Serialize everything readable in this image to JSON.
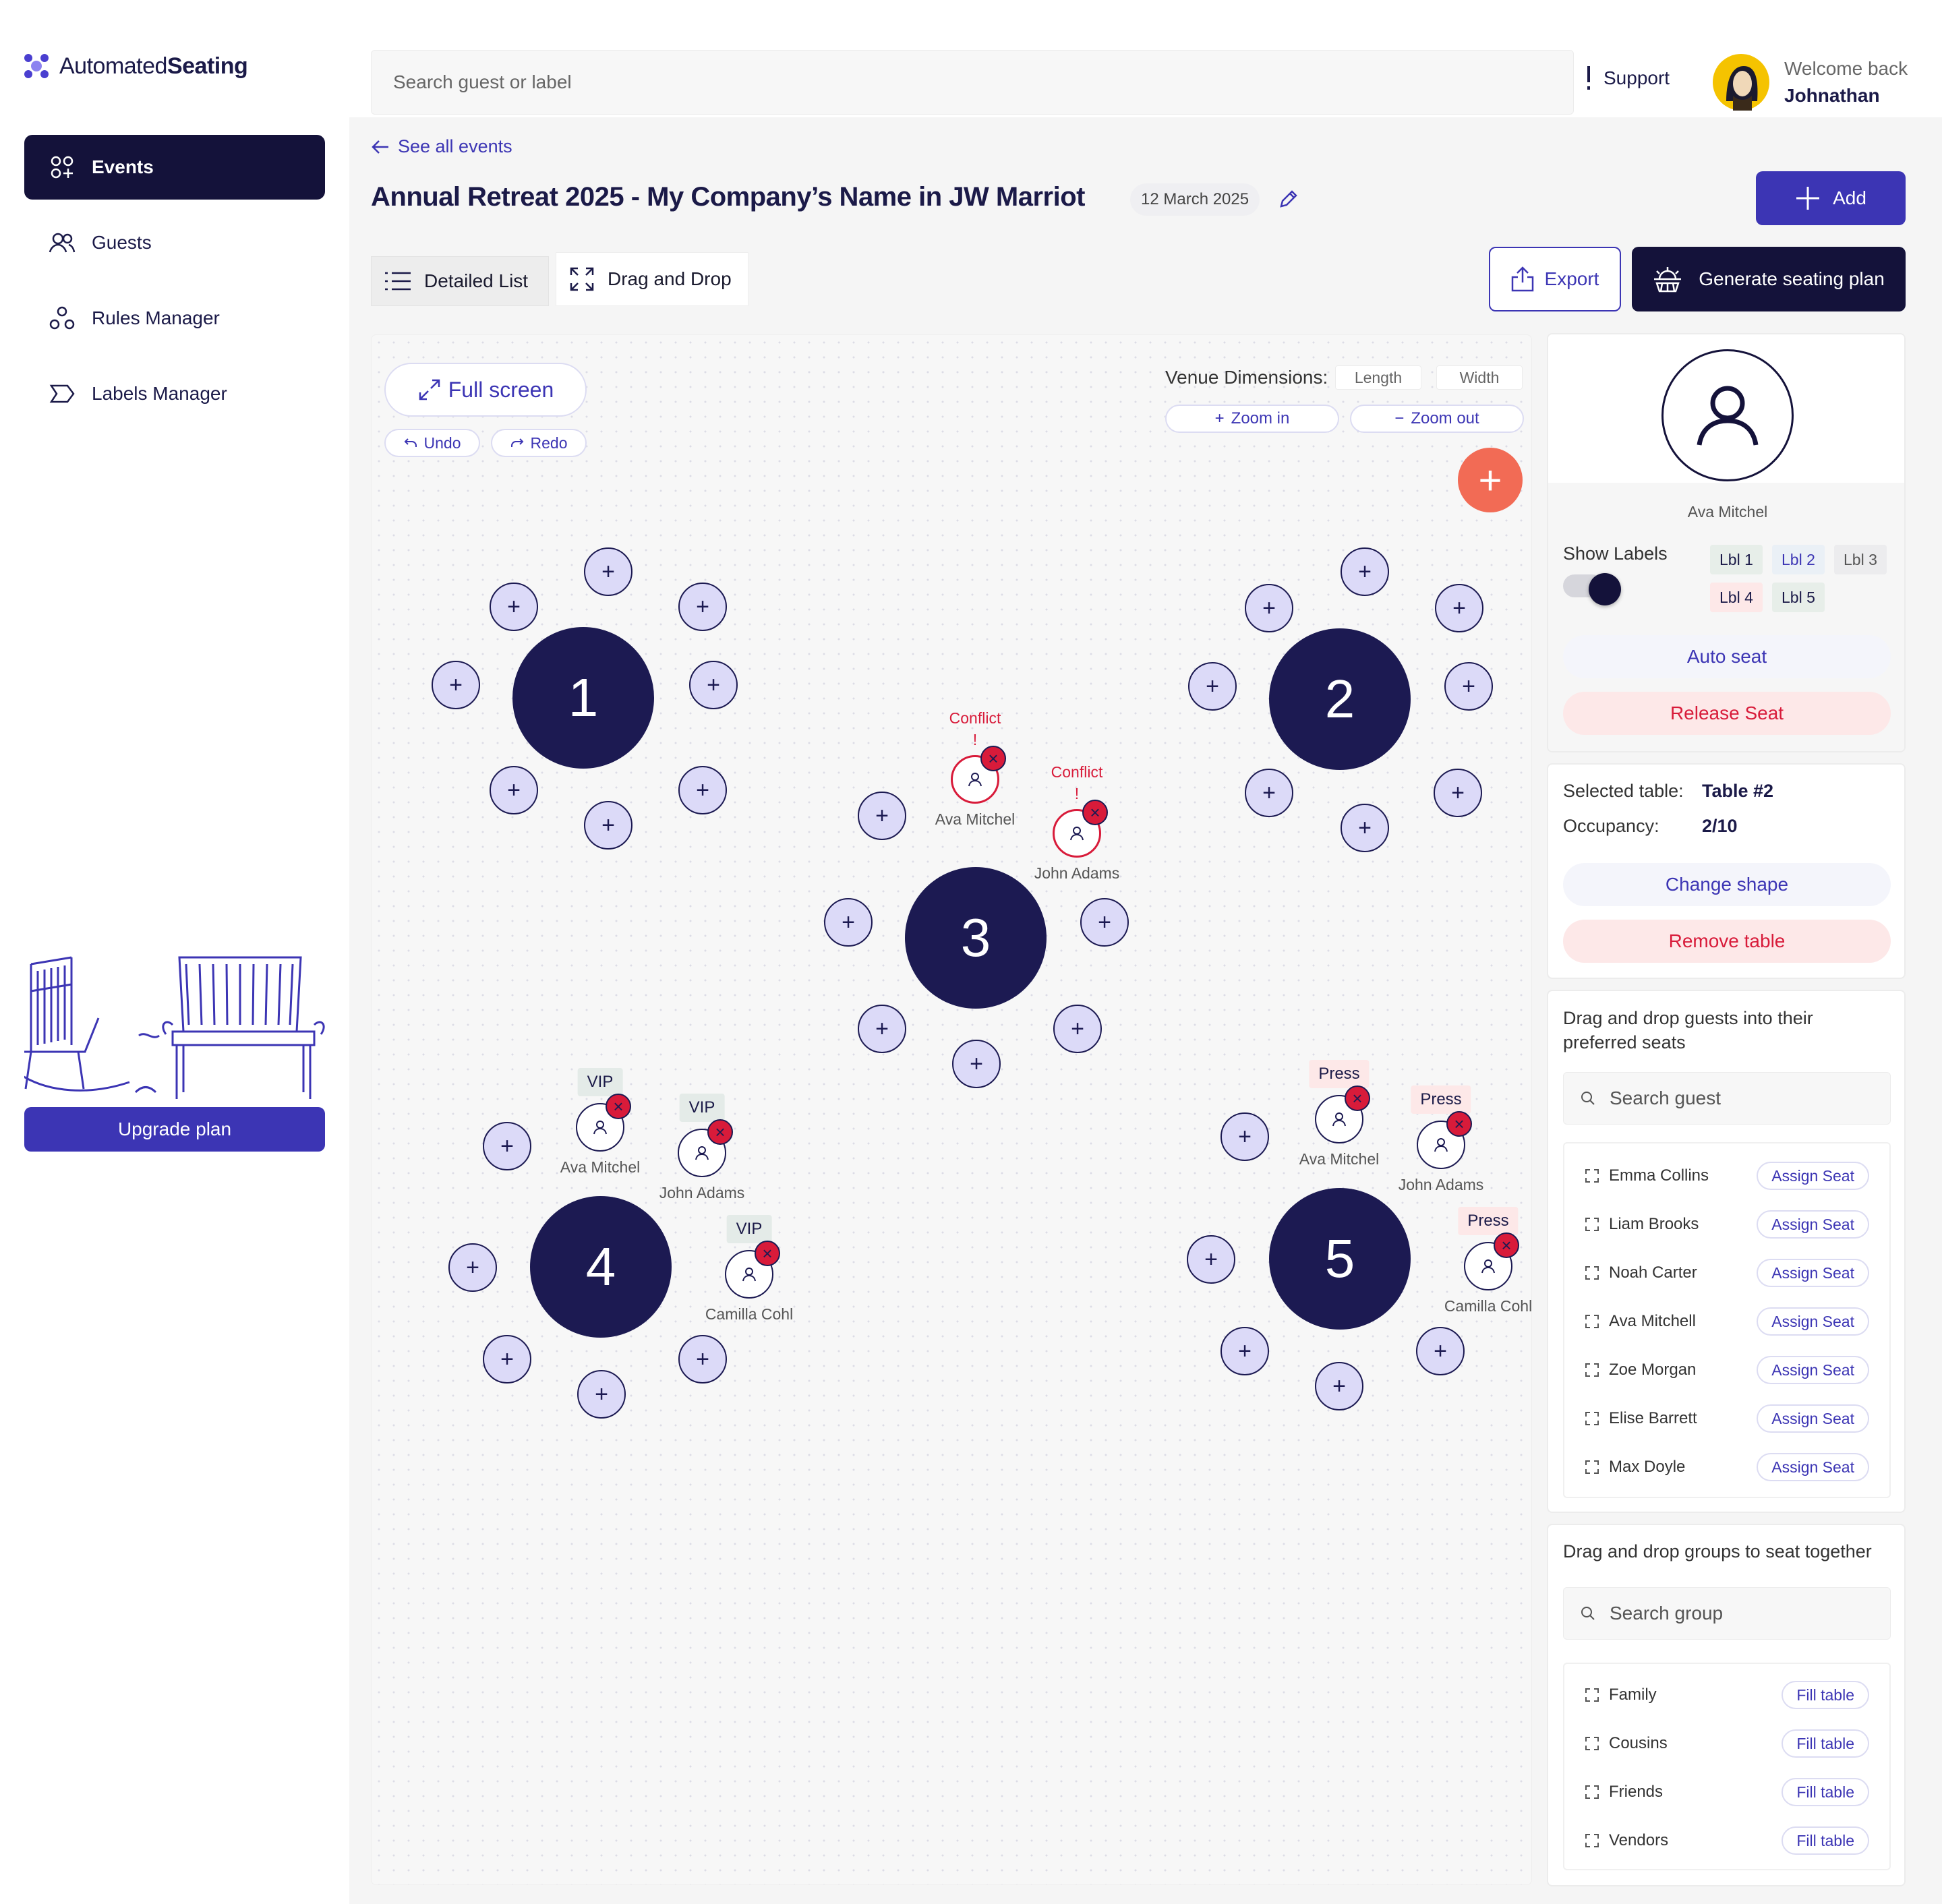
{
  "app": {
    "brand_light": "Automated",
    "brand_bold": "Seating"
  },
  "nav": [
    {
      "label": "Events",
      "icon": "grid-plus-icon",
      "active": true
    },
    {
      "label": "Guests",
      "icon": "users-icon"
    },
    {
      "label": "Rules Manager",
      "icon": "nodes-icon"
    },
    {
      "label": "Labels Manager",
      "icon": "tag-icon"
    }
  ],
  "upgrade": {
    "label": "Upgrade plan"
  },
  "header": {
    "search_placeholder": "Search guest or label",
    "support": "Support",
    "welcome": "Welcome back",
    "user": "Johnathan"
  },
  "event": {
    "back": "See all events",
    "title": "Annual Retreat 2025 - My Company’s Name in JW Marriot",
    "date": "12 March 2025",
    "add": "Add"
  },
  "views": {
    "list": "Detailed List",
    "drag": "Drag and Drop",
    "export": "Export",
    "generate": "Generate seating plan"
  },
  "canvas": {
    "fullscreen": "Full screen",
    "undo": "Undo",
    "redo": "Redo",
    "venue": "Venue Dimensions:",
    "length": "Length",
    "width": "Width",
    "zoom_in": "Zoom in",
    "zoom_out": "Zoom out",
    "fab": "+"
  },
  "tables": [
    "1",
    "2",
    "3",
    "4",
    "5"
  ],
  "seat_plus": "+",
  "guests": {
    "ava": "Ava Mitchel",
    "john": "John Adams",
    "camilla": "Camilla Cohl",
    "conflict": "Conflict",
    "excl": "!",
    "vip": "VIP",
    "press": "Press"
  },
  "profile": {
    "name": "Ava Mitchel",
    "show_labels": "Show Labels",
    "labels": [
      "Lbl 1",
      "Lbl 2",
      "Lbl 3",
      "Lbl 4",
      "Lbl 5"
    ],
    "auto_seat": "Auto seat",
    "release": "Release Seat"
  },
  "selected": {
    "table_label": "Selected table:",
    "table_value": "Table #2",
    "occ_label": "Occupancy:",
    "occ_value": "2/10",
    "change": "Change shape",
    "remove": "Remove table"
  },
  "guest_panel": {
    "title": "Drag and drop guests into their preferred seats",
    "search": "Search guest",
    "assign": "Assign Seat",
    "list": [
      "Emma Collins",
      "Liam Brooks",
      "Noah Carter",
      "Ava Mitchell",
      "Zoe Morgan",
      "Elise Barrett",
      "Max Doyle"
    ]
  },
  "group_panel": {
    "title": "Drag and drop groups to seat together",
    "search": "Search group",
    "fill": "Fill table",
    "list": [
      "Family",
      "Cousins",
      "Friends",
      "Vendors"
    ]
  },
  "colors": {
    "primary": "#3c35b4",
    "navy": "#1c1a52",
    "danger": "#d81b3a",
    "fab": "#f26b55"
  }
}
